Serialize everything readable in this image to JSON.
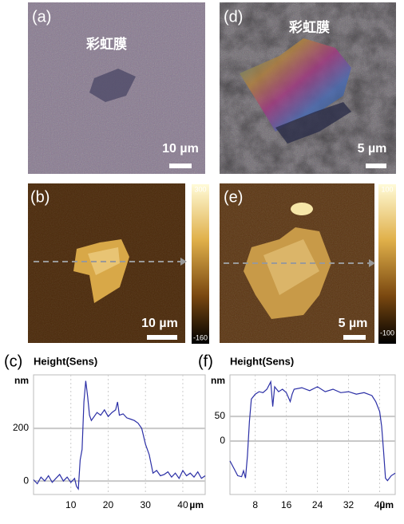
{
  "panels": [
    {
      "label": "(a)",
      "caption": "彩虹膜",
      "scale_bar": "10 µm"
    },
    {
      "label": "(d)",
      "caption": "彩虹膜",
      "scale_bar": "5 µm"
    },
    {
      "label": "(b)",
      "scale_bar": "10 µm",
      "colorbar": {
        "max": 300,
        "min": -160
      }
    },
    {
      "label": "(e)",
      "scale_bar": "5 µm",
      "colorbar": {
        "max": 100,
        "min": -100
      }
    }
  ],
  "chart_data": [
    {
      "type": "line",
      "panel_label": "(c)",
      "title": "Height(Sens)",
      "ylabel": "nm",
      "xlabel": "µm",
      "grid": true,
      "xlim": [
        0,
        46
      ],
      "ylim": [
        -51,
        403
      ],
      "xticks": [
        10,
        20,
        30,
        40
      ],
      "yticks": [
        0,
        200
      ],
      "x": [
        0,
        1,
        2,
        3,
        4,
        5,
        6,
        7,
        8,
        9,
        10,
        11,
        11.5,
        12,
        12.5,
        13,
        13.5,
        14,
        14.5,
        15,
        15.5,
        16,
        17,
        18,
        19,
        20,
        21,
        22,
        22.5,
        23,
        24,
        25,
        26,
        27,
        28,
        29,
        30,
        31,
        32,
        33,
        34,
        35,
        36,
        37,
        38,
        39,
        40,
        41,
        42,
        43,
        44,
        45,
        46
      ],
      "series": [
        {
          "color": "#2b2fa6",
          "values": [
            5,
            -10,
            15,
            0,
            20,
            -5,
            10,
            25,
            0,
            15,
            -5,
            10,
            -20,
            -30,
            80,
            120,
            300,
            380,
            320,
            250,
            230,
            240,
            260,
            250,
            270,
            245,
            260,
            270,
            300,
            250,
            255,
            240,
            235,
            230,
            220,
            200,
            140,
            100,
            30,
            40,
            20,
            25,
            35,
            15,
            30,
            10,
            40,
            20,
            30,
            15,
            35,
            10,
            20
          ]
        }
      ]
    },
    {
      "type": "line",
      "panel_label": "(f)",
      "title": "Height(Sens)",
      "ylabel": "nm",
      "xlabel": "µm",
      "grid": true,
      "xlim": [
        1.5,
        44
      ],
      "ylim": [
        -108,
        134
      ],
      "xticks": [
        8,
        16,
        24,
        32,
        40
      ],
      "yticks": [
        0,
        50
      ],
      "x": [
        1.5,
        2.5,
        3.5,
        4.5,
        5,
        5.5,
        6,
        6.5,
        7,
        8,
        9,
        10,
        11,
        12,
        12.5,
        13,
        14,
        15,
        16,
        17,
        17.5,
        18,
        20,
        22,
        24,
        26,
        28,
        30,
        32,
        34,
        36,
        38,
        39,
        40,
        40.5,
        41,
        41.5,
        42,
        43,
        44
      ],
      "series": [
        {
          "color": "#2b2fa6",
          "values": [
            -40,
            -55,
            -70,
            -72,
            -60,
            -75,
            -30,
            40,
            85,
            95,
            100,
            98,
            105,
            120,
            70,
            110,
            100,
            105,
            98,
            80,
            95,
            105,
            108,
            102,
            110,
            100,
            105,
            98,
            100,
            95,
            98,
            92,
            80,
            60,
            30,
            -20,
            -75,
            -80,
            -70,
            -65
          ]
        }
      ]
    }
  ]
}
